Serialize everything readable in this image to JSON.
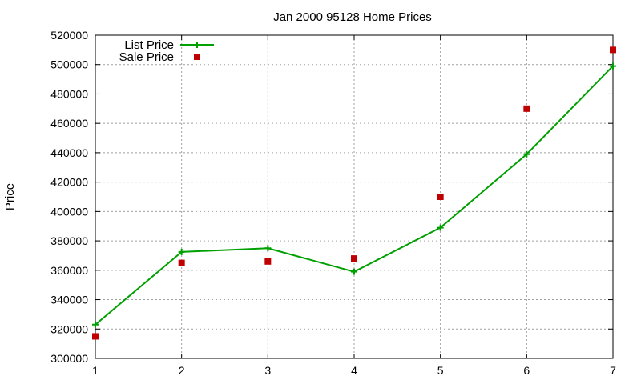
{
  "chart_data": {
    "type": "line",
    "title": "Jan 2000 95128 Home Prices",
    "xlabel": "",
    "ylabel": "Price",
    "xlim": [
      1,
      7
    ],
    "ylim": [
      300000,
      520000
    ],
    "x_ticks": [
      1,
      2,
      3,
      4,
      5,
      6,
      7
    ],
    "y_ticks": [
      300000,
      320000,
      340000,
      360000,
      380000,
      400000,
      420000,
      440000,
      460000,
      480000,
      500000,
      520000
    ],
    "grid": true,
    "legend_position": "top-left",
    "series": [
      {
        "name": "List Price",
        "style": "line+plus",
        "color": "#00a000",
        "x": [
          1,
          2,
          3,
          4,
          5,
          6,
          7
        ],
        "y": [
          323000,
          372500,
          375000,
          359000,
          389000,
          439000,
          499000
        ]
      },
      {
        "name": "Sale Price",
        "style": "square",
        "color": "#c00000",
        "x": [
          1,
          2,
          3,
          4,
          5,
          6,
          7
        ],
        "y": [
          315000,
          365000,
          366000,
          368000,
          410000,
          470000,
          510000
        ]
      }
    ]
  }
}
